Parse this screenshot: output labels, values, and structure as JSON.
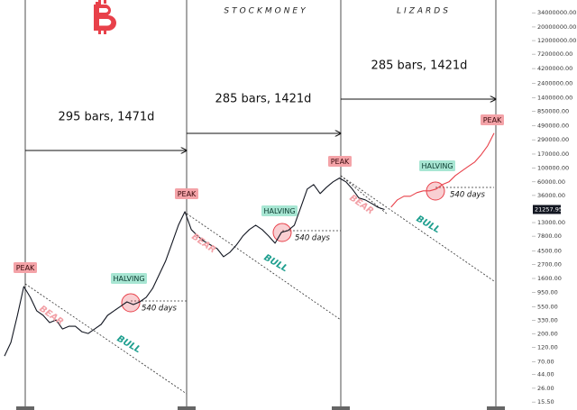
{
  "chart_data": {
    "type": "line",
    "log_scale": true,
    "headers": [
      "STOCKMONEY",
      "LIZARDS"
    ],
    "spans": [
      "295 bars, 1471d",
      "285 bars, 1421d",
      "285 bars, 1421d"
    ],
    "peaks": [
      "PEAK",
      "PEAK",
      "PEAK",
      "PEAK"
    ],
    "halvings": [
      "HALVING",
      "HALVING",
      "HALVING"
    ],
    "bear": [
      "BEAR",
      "BEAR",
      "BEAR"
    ],
    "bull": [
      "BULL",
      "BULL",
      "BULL"
    ],
    "days": [
      "540 days",
      "540 days",
      "540 days"
    ],
    "categories": [
      null,
      null,
      null,
      null,
      null,
      null,
      null,
      null,
      null,
      null,
      null,
      null,
      null,
      null,
      null,
      null,
      null,
      null,
      null,
      null,
      null,
      null,
      null,
      null,
      null,
      null,
      null,
      null,
      null,
      null,
      null,
      null,
      null,
      null,
      null,
      null,
      null,
      null,
      null,
      null,
      null,
      null,
      null,
      null,
      null,
      null,
      null,
      null,
      null,
      null,
      null,
      null,
      null,
      null,
      null,
      null,
      null,
      null,
      null,
      null,
      null,
      null,
      null,
      null,
      null,
      null,
      null,
      null,
      null,
      null,
      null,
      null,
      null,
      null,
      null,
      null,
      null
    ],
    "series": [
      {
        "color": "#131722",
        "values": [
          87,
          145,
          400,
          1180,
          790,
          475,
          400,
          305,
          337,
          240,
          266,
          266,
          217,
          203,
          240,
          285,
          400,
          475,
          560,
          664,
          600,
          664,
          790,
          1100,
          1840,
          3050,
          6000,
          11800,
          19600,
          10000,
          7870,
          6430,
          5610,
          4900,
          3610,
          4280,
          5610,
          7870,
          10000,
          11800,
          10000,
          7870,
          6000,
          9020,
          9640,
          11800,
          23200,
          45800,
          54200,
          38600,
          49000,
          60000,
          69000,
          60000,
          45800,
          32700,
          30500,
          26600,
          23000,
          21257.95,
          null,
          null,
          null,
          null,
          null,
          null,
          null,
          null,
          null,
          null,
          null,
          null,
          null,
          null,
          null,
          null,
          null
        ]
      },
      {
        "color": "#e8414a",
        "values": [
          null,
          null,
          null,
          null,
          null,
          null,
          null,
          null,
          null,
          null,
          null,
          null,
          null,
          null,
          null,
          null,
          null,
          null,
          null,
          null,
          null,
          null,
          null,
          null,
          null,
          null,
          null,
          null,
          null,
          null,
          null,
          null,
          null,
          null,
          null,
          null,
          null,
          null,
          null,
          null,
          null,
          null,
          null,
          null,
          null,
          null,
          null,
          null,
          null,
          null,
          null,
          null,
          null,
          null,
          null,
          null,
          null,
          null,
          null,
          null,
          23200,
          30500,
          34900,
          34900,
          40000,
          42800,
          42800,
          45800,
          54200,
          60000,
          76000,
          90200,
          107000,
          126000,
          166000,
          232000,
          373000
        ]
      }
    ],
    "ylim": [
      11.5,
      55000000
    ],
    "yticks": [
      {
        "value": 34000000,
        "label": "34000000.00"
      },
      {
        "value": 20000000,
        "label": "20000000.00"
      },
      {
        "value": 12000000,
        "label": "12000000.00"
      },
      {
        "value": 7200000,
        "label": "7200000.00"
      },
      {
        "value": 4200000,
        "label": "4200000.00"
      },
      {
        "value": 2400000,
        "label": "2400000.00"
      },
      {
        "value": 1400000,
        "label": "1400000.00"
      },
      {
        "value": 850000,
        "label": "850000.00"
      },
      {
        "value": 490000,
        "label": "490000.00"
      },
      {
        "value": 290000,
        "label": "290000.00"
      },
      {
        "value": 170000,
        "label": "170000.00"
      },
      {
        "value": 100000,
        "label": "100000.00"
      },
      {
        "value": 60000,
        "label": "60000.00"
      },
      {
        "value": 36000,
        "label": "36000.00"
      },
      {
        "value": 13000,
        "label": "13000.00"
      },
      {
        "value": 7800,
        "label": "7800.00"
      },
      {
        "value": 4500,
        "label": "4500.00"
      },
      {
        "value": 2700,
        "label": "2700.00"
      },
      {
        "value": 1600,
        "label": "1600.00"
      },
      {
        "value": 950,
        "label": "950.00"
      },
      {
        "value": 550,
        "label": "550.00"
      },
      {
        "value": 330,
        "label": "330.00"
      },
      {
        "value": 200,
        "label": "200.00"
      },
      {
        "value": 120,
        "label": "120.00"
      },
      {
        "value": 70,
        "label": "70.00"
      },
      {
        "value": 44,
        "label": "44.00"
      },
      {
        "value": 26,
        "label": "26.00"
      },
      {
        "value": 15.5,
        "label": "15.50"
      }
    ]
  }
}
